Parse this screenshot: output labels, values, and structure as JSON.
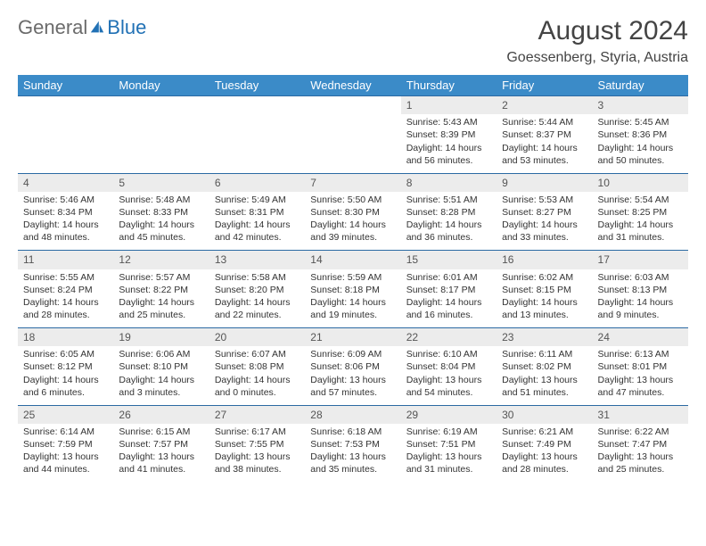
{
  "logo": {
    "text1": "General",
    "text2": "Blue"
  },
  "title": "August 2024",
  "location": "Goessenberg, Styria, Austria",
  "colors": {
    "header_bg": "#3b8bc8",
    "header_text": "#ffffff",
    "daynum_bg": "#ececec",
    "border": "#2b6aa3",
    "logo_gray": "#6b6b6b",
    "logo_blue": "#2171b5",
    "text": "#333333",
    "background": "#ffffff"
  },
  "day_headers": [
    "Sunday",
    "Monday",
    "Tuesday",
    "Wednesday",
    "Thursday",
    "Friday",
    "Saturday"
  ],
  "weeks": [
    [
      null,
      null,
      null,
      null,
      {
        "n": "1",
        "sr": "5:43 AM",
        "ss": "8:39 PM",
        "dl": "14 hours and 56 minutes."
      },
      {
        "n": "2",
        "sr": "5:44 AM",
        "ss": "8:37 PM",
        "dl": "14 hours and 53 minutes."
      },
      {
        "n": "3",
        "sr": "5:45 AM",
        "ss": "8:36 PM",
        "dl": "14 hours and 50 minutes."
      }
    ],
    [
      {
        "n": "4",
        "sr": "5:46 AM",
        "ss": "8:34 PM",
        "dl": "14 hours and 48 minutes."
      },
      {
        "n": "5",
        "sr": "5:48 AM",
        "ss": "8:33 PM",
        "dl": "14 hours and 45 minutes."
      },
      {
        "n": "6",
        "sr": "5:49 AM",
        "ss": "8:31 PM",
        "dl": "14 hours and 42 minutes."
      },
      {
        "n": "7",
        "sr": "5:50 AM",
        "ss": "8:30 PM",
        "dl": "14 hours and 39 minutes."
      },
      {
        "n": "8",
        "sr": "5:51 AM",
        "ss": "8:28 PM",
        "dl": "14 hours and 36 minutes."
      },
      {
        "n": "9",
        "sr": "5:53 AM",
        "ss": "8:27 PM",
        "dl": "14 hours and 33 minutes."
      },
      {
        "n": "10",
        "sr": "5:54 AM",
        "ss": "8:25 PM",
        "dl": "14 hours and 31 minutes."
      }
    ],
    [
      {
        "n": "11",
        "sr": "5:55 AM",
        "ss": "8:24 PM",
        "dl": "14 hours and 28 minutes."
      },
      {
        "n": "12",
        "sr": "5:57 AM",
        "ss": "8:22 PM",
        "dl": "14 hours and 25 minutes."
      },
      {
        "n": "13",
        "sr": "5:58 AM",
        "ss": "8:20 PM",
        "dl": "14 hours and 22 minutes."
      },
      {
        "n": "14",
        "sr": "5:59 AM",
        "ss": "8:18 PM",
        "dl": "14 hours and 19 minutes."
      },
      {
        "n": "15",
        "sr": "6:01 AM",
        "ss": "8:17 PM",
        "dl": "14 hours and 16 minutes."
      },
      {
        "n": "16",
        "sr": "6:02 AM",
        "ss": "8:15 PM",
        "dl": "14 hours and 13 minutes."
      },
      {
        "n": "17",
        "sr": "6:03 AM",
        "ss": "8:13 PM",
        "dl": "14 hours and 9 minutes."
      }
    ],
    [
      {
        "n": "18",
        "sr": "6:05 AM",
        "ss": "8:12 PM",
        "dl": "14 hours and 6 minutes."
      },
      {
        "n": "19",
        "sr": "6:06 AM",
        "ss": "8:10 PM",
        "dl": "14 hours and 3 minutes."
      },
      {
        "n": "20",
        "sr": "6:07 AM",
        "ss": "8:08 PM",
        "dl": "14 hours and 0 minutes."
      },
      {
        "n": "21",
        "sr": "6:09 AM",
        "ss": "8:06 PM",
        "dl": "13 hours and 57 minutes."
      },
      {
        "n": "22",
        "sr": "6:10 AM",
        "ss": "8:04 PM",
        "dl": "13 hours and 54 minutes."
      },
      {
        "n": "23",
        "sr": "6:11 AM",
        "ss": "8:02 PM",
        "dl": "13 hours and 51 minutes."
      },
      {
        "n": "24",
        "sr": "6:13 AM",
        "ss": "8:01 PM",
        "dl": "13 hours and 47 minutes."
      }
    ],
    [
      {
        "n": "25",
        "sr": "6:14 AM",
        "ss": "7:59 PM",
        "dl": "13 hours and 44 minutes."
      },
      {
        "n": "26",
        "sr": "6:15 AM",
        "ss": "7:57 PM",
        "dl": "13 hours and 41 minutes."
      },
      {
        "n": "27",
        "sr": "6:17 AM",
        "ss": "7:55 PM",
        "dl": "13 hours and 38 minutes."
      },
      {
        "n": "28",
        "sr": "6:18 AM",
        "ss": "7:53 PM",
        "dl": "13 hours and 35 minutes."
      },
      {
        "n": "29",
        "sr": "6:19 AM",
        "ss": "7:51 PM",
        "dl": "13 hours and 31 minutes."
      },
      {
        "n": "30",
        "sr": "6:21 AM",
        "ss": "7:49 PM",
        "dl": "13 hours and 28 minutes."
      },
      {
        "n": "31",
        "sr": "6:22 AM",
        "ss": "7:47 PM",
        "dl": "13 hours and 25 minutes."
      }
    ]
  ],
  "labels": {
    "sunrise": "Sunrise:",
    "sunset": "Sunset:",
    "daylight": "Daylight:"
  }
}
